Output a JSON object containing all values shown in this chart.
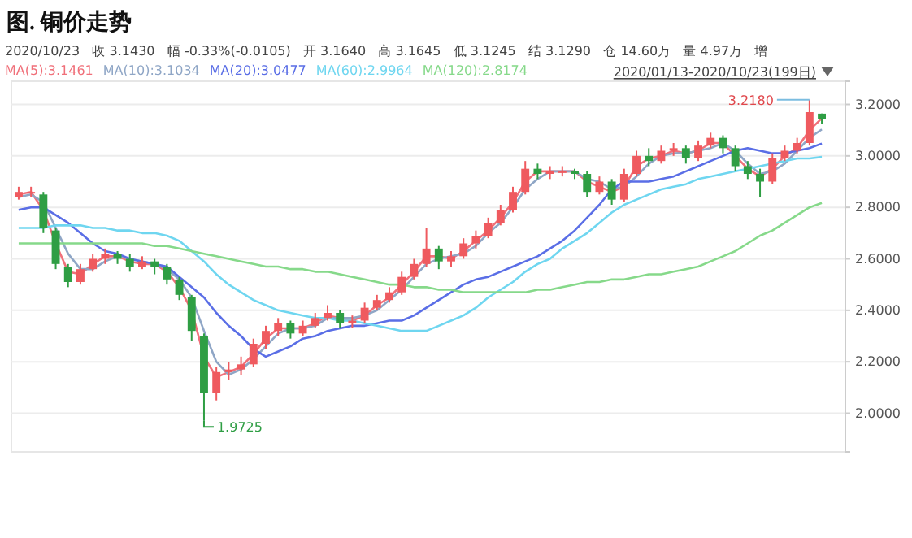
{
  "chart_data": {
    "type": "candlestick",
    "title": "图. 铜价走势",
    "annotations": [
      "2020/10/23   收 3.1430   幅 -0.33%(-0.0105)   开 3.1640   高 3.1645   低 3.1245   结 3.1290   仓 14.60万   量 4.97万   增",
      "2020/01/13-2020/10/23(199日)",
      "3.2180",
      "1.9725"
    ],
    "categories": [
      null,
      null,
      null,
      null,
      null,
      null,
      null,
      null,
      null,
      null,
      null,
      null,
      null,
      null,
      null,
      null,
      null,
      null,
      null,
      null,
      null,
      null,
      null,
      null,
      null,
      null,
      null,
      null,
      null,
      null,
      null,
      null,
      null,
      null,
      null,
      null,
      null,
      null,
      null,
      null,
      null,
      null,
      null,
      null,
      null,
      null,
      null,
      null,
      null,
      null,
      null,
      null,
      null,
      null,
      null,
      null,
      null,
      null,
      null,
      null,
      null,
      null,
      null,
      null,
      null,
      null
    ],
    "ohlc": [
      [
        2.84,
        2.88,
        2.83,
        2.86
      ],
      [
        2.86,
        2.88,
        2.84,
        2.86
      ],
      [
        2.85,
        2.86,
        2.7,
        2.72
      ],
      [
        2.71,
        2.72,
        2.56,
        2.58
      ],
      [
        2.57,
        2.58,
        2.49,
        2.51
      ],
      [
        2.51,
        2.58,
        2.5,
        2.56
      ],
      [
        2.56,
        2.62,
        2.55,
        2.6
      ],
      [
        2.6,
        2.64,
        2.58,
        2.62
      ],
      [
        2.62,
        2.63,
        2.58,
        2.6
      ],
      [
        2.6,
        2.62,
        2.55,
        2.57
      ],
      [
        2.57,
        2.61,
        2.56,
        2.59
      ],
      [
        2.59,
        2.6,
        2.54,
        2.57
      ],
      [
        2.57,
        2.58,
        2.5,
        2.52
      ],
      [
        2.52,
        2.53,
        2.44,
        2.46
      ],
      [
        2.45,
        2.46,
        2.28,
        2.32
      ],
      [
        2.3,
        2.31,
        1.9725,
        2.08
      ],
      [
        2.08,
        2.18,
        2.05,
        2.16
      ],
      [
        2.16,
        2.2,
        2.13,
        2.17
      ],
      [
        2.17,
        2.22,
        2.15,
        2.19
      ],
      [
        2.19,
        2.29,
        2.18,
        2.27
      ],
      [
        2.27,
        2.34,
        2.25,
        2.32
      ],
      [
        2.32,
        2.37,
        2.3,
        2.35
      ],
      [
        2.35,
        2.36,
        2.29,
        2.31
      ],
      [
        2.31,
        2.36,
        2.3,
        2.34
      ],
      [
        2.34,
        2.39,
        2.33,
        2.37
      ],
      [
        2.37,
        2.42,
        2.36,
        2.39
      ],
      [
        2.39,
        2.4,
        2.33,
        2.35
      ],
      [
        2.35,
        2.38,
        2.33,
        2.36
      ],
      [
        2.36,
        2.43,
        2.35,
        2.41
      ],
      [
        2.41,
        2.46,
        2.4,
        2.44
      ],
      [
        2.44,
        2.49,
        2.43,
        2.47
      ],
      [
        2.47,
        2.55,
        2.46,
        2.53
      ],
      [
        2.53,
        2.6,
        2.52,
        2.58
      ],
      [
        2.58,
        2.72,
        2.57,
        2.64
      ],
      [
        2.64,
        2.65,
        2.56,
        2.59
      ],
      [
        2.59,
        2.63,
        2.57,
        2.61
      ],
      [
        2.61,
        2.68,
        2.6,
        2.66
      ],
      [
        2.66,
        2.71,
        2.64,
        2.69
      ],
      [
        2.69,
        2.76,
        2.68,
        2.74
      ],
      [
        2.74,
        2.81,
        2.73,
        2.79
      ],
      [
        2.79,
        2.88,
        2.78,
        2.86
      ],
      [
        2.86,
        2.98,
        2.85,
        2.95
      ],
      [
        2.95,
        2.97,
        2.91,
        2.93
      ],
      [
        2.93,
        2.96,
        2.91,
        2.94
      ],
      [
        2.94,
        2.96,
        2.92,
        2.94
      ],
      [
        2.94,
        2.95,
        2.91,
        2.93
      ],
      [
        2.93,
        2.94,
        2.84,
        2.86
      ],
      [
        2.86,
        2.92,
        2.85,
        2.9
      ],
      [
        2.9,
        2.91,
        2.81,
        2.83
      ],
      [
        2.83,
        2.95,
        2.82,
        2.93
      ],
      [
        2.93,
        3.02,
        2.92,
        3.0
      ],
      [
        3.0,
        3.03,
        2.96,
        2.98
      ],
      [
        2.98,
        3.04,
        2.97,
        3.02
      ],
      [
        3.02,
        3.05,
        3.0,
        3.03
      ],
      [
        3.03,
        3.04,
        2.97,
        2.99
      ],
      [
        2.99,
        3.06,
        2.98,
        3.04
      ],
      [
        3.04,
        3.09,
        3.03,
        3.07
      ],
      [
        3.07,
        3.08,
        3.01,
        3.03
      ],
      [
        3.03,
        3.04,
        2.94,
        2.96
      ],
      [
        2.96,
        2.98,
        2.91,
        2.93
      ],
      [
        2.93,
        2.95,
        2.84,
        2.9
      ],
      [
        2.9,
        3.01,
        2.89,
        2.99
      ],
      [
        2.99,
        3.04,
        2.98,
        3.02
      ],
      [
        3.02,
        3.07,
        3.01,
        3.05
      ],
      [
        3.05,
        3.218,
        3.04,
        3.17
      ],
      [
        3.164,
        3.1645,
        3.1245,
        3.143
      ]
    ],
    "series": [
      {
        "name": "MA(5):3.1461",
        "type": "line",
        "color": "#f0707a",
        "values": [
          2.85,
          2.86,
          2.79,
          2.66,
          2.55,
          2.54,
          2.58,
          2.61,
          2.61,
          2.59,
          2.58,
          2.58,
          2.55,
          2.49,
          2.4,
          2.22,
          2.14,
          2.16,
          2.18,
          2.23,
          2.29,
          2.33,
          2.33,
          2.33,
          2.35,
          2.38,
          2.37,
          2.36,
          2.38,
          2.42,
          2.45,
          2.5,
          2.55,
          2.61,
          2.61,
          2.6,
          2.63,
          2.67,
          2.71,
          2.76,
          2.82,
          2.9,
          2.94,
          2.94,
          2.94,
          2.94,
          2.9,
          2.88,
          2.86,
          2.88,
          2.96,
          2.99,
          3.0,
          3.02,
          3.01,
          3.02,
          3.05,
          3.05,
          3.0,
          2.95,
          2.92,
          2.95,
          3.0,
          3.03,
          3.1,
          3.146
        ]
      },
      {
        "name": "MA(10):3.1034",
        "type": "line",
        "color": "#8fa6c6",
        "values": [
          2.84,
          2.85,
          2.82,
          2.72,
          2.62,
          2.56,
          2.56,
          2.59,
          2.61,
          2.6,
          2.59,
          2.58,
          2.56,
          2.52,
          2.45,
          2.32,
          2.2,
          2.15,
          2.17,
          2.21,
          2.26,
          2.31,
          2.33,
          2.33,
          2.34,
          2.37,
          2.37,
          2.37,
          2.38,
          2.4,
          2.44,
          2.48,
          2.53,
          2.58,
          2.6,
          2.61,
          2.62,
          2.65,
          2.7,
          2.74,
          2.8,
          2.87,
          2.91,
          2.94,
          2.94,
          2.94,
          2.91,
          2.9,
          2.87,
          2.88,
          2.92,
          2.97,
          3.0,
          3.01,
          3.01,
          3.02,
          3.03,
          3.05,
          3.02,
          2.97,
          2.93,
          2.94,
          2.97,
          3.02,
          3.07,
          3.103
        ]
      },
      {
        "name": "MA(20):3.0477",
        "type": "line",
        "color": "#5a6ee6",
        "values": [
          2.79,
          2.8,
          2.8,
          2.77,
          2.74,
          2.7,
          2.66,
          2.63,
          2.62,
          2.6,
          2.59,
          2.58,
          2.57,
          2.53,
          2.49,
          2.45,
          2.39,
          2.34,
          2.3,
          2.25,
          2.22,
          2.24,
          2.26,
          2.29,
          2.3,
          2.32,
          2.33,
          2.34,
          2.34,
          2.35,
          2.36,
          2.36,
          2.38,
          2.41,
          2.44,
          2.47,
          2.5,
          2.52,
          2.53,
          2.55,
          2.57,
          2.59,
          2.61,
          2.64,
          2.67,
          2.71,
          2.76,
          2.81,
          2.87,
          2.9,
          2.9,
          2.9,
          2.91,
          2.92,
          2.94,
          2.96,
          2.98,
          3.0,
          3.02,
          3.03,
          3.02,
          3.01,
          3.01,
          3.02,
          3.03,
          3.048
        ]
      },
      {
        "name": "MA(60):2.9964",
        "type": "line",
        "color": "#6fd6f0",
        "values": [
          2.72,
          2.72,
          2.72,
          2.73,
          2.73,
          2.73,
          2.72,
          2.72,
          2.71,
          2.71,
          2.7,
          2.7,
          2.69,
          2.67,
          2.63,
          2.59,
          2.54,
          2.5,
          2.47,
          2.44,
          2.42,
          2.4,
          2.39,
          2.38,
          2.37,
          2.37,
          2.36,
          2.36,
          2.35,
          2.34,
          2.33,
          2.32,
          2.32,
          2.32,
          2.34,
          2.36,
          2.38,
          2.41,
          2.45,
          2.48,
          2.51,
          2.55,
          2.58,
          2.6,
          2.64,
          2.67,
          2.7,
          2.74,
          2.78,
          2.81,
          2.83,
          2.85,
          2.87,
          2.88,
          2.89,
          2.91,
          2.92,
          2.93,
          2.94,
          2.95,
          2.96,
          2.97,
          2.98,
          2.99,
          2.99,
          2.996
        ]
      },
      {
        "name": "MA(120):2.8174",
        "type": "line",
        "color": "#86d98a",
        "values": [
          2.66,
          2.66,
          2.66,
          2.66,
          2.66,
          2.66,
          2.66,
          2.66,
          2.66,
          2.66,
          2.66,
          2.65,
          2.65,
          2.64,
          2.63,
          2.62,
          2.61,
          2.6,
          2.59,
          2.58,
          2.57,
          2.57,
          2.56,
          2.56,
          2.55,
          2.55,
          2.54,
          2.53,
          2.52,
          2.51,
          2.5,
          2.5,
          2.49,
          2.49,
          2.48,
          2.48,
          2.47,
          2.47,
          2.47,
          2.47,
          2.47,
          2.47,
          2.48,
          2.48,
          2.49,
          2.5,
          2.51,
          2.51,
          2.52,
          2.52,
          2.53,
          2.54,
          2.54,
          2.55,
          2.56,
          2.57,
          2.59,
          2.61,
          2.63,
          2.66,
          2.69,
          2.71,
          2.74,
          2.77,
          2.8,
          2.817
        ]
      }
    ],
    "ylim": [
      1.85,
      3.29
    ],
    "yticks": [
      {
        "value": 2.0,
        "label": "2.0000"
      },
      {
        "value": 2.2,
        "label": "2.2000"
      },
      {
        "value": 2.4,
        "label": "2.4000"
      },
      {
        "value": 2.6,
        "label": "2.6000"
      },
      {
        "value": 2.8,
        "label": "2.8000"
      },
      {
        "value": 3.0,
        "label": "3.0000"
      },
      {
        "value": 3.2,
        "label": "3.2000"
      }
    ],
    "tick_labels": "y",
    "grid": "y",
    "legend": "top left"
  }
}
